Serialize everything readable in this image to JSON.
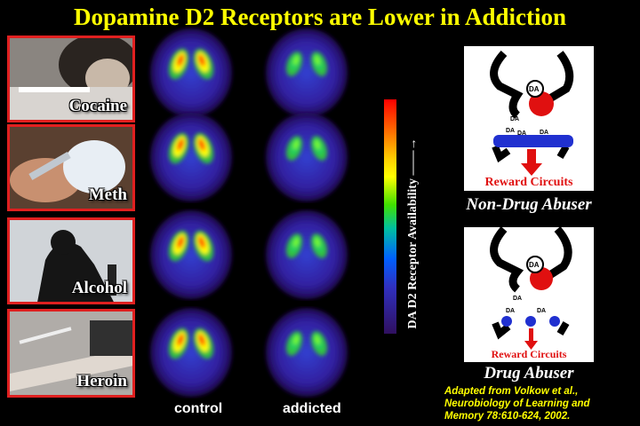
{
  "title": "Dopamine D2 Receptors are  Lower in Addiction",
  "drugs": [
    {
      "label": "Cocaine"
    },
    {
      "label": "Meth"
    },
    {
      "label": "Alcohol"
    },
    {
      "label": "Heroin"
    }
  ],
  "columns": {
    "control": "control",
    "addicted": "addicted"
  },
  "colorbar": {
    "label": "DA D2 Receptor Availability ——→",
    "colors": [
      "#ff0000",
      "#ffff00",
      "#40e000",
      "#0060ff",
      "#301060"
    ]
  },
  "diagrams": {
    "non_abuser": {
      "caption": "Non-Drug Abuser",
      "reward": "Reward Circuits",
      "da": "DA"
    },
    "abuser": {
      "caption": "Drug Abuser",
      "reward": "Reward Circuits",
      "da": "DA"
    }
  },
  "citation": [
    "Adapted from Volkow et al.,",
    "Neurobiology of Learning and",
    "Memory 78:610-624, 2002."
  ],
  "colors": {
    "title": "#ffff00",
    "border": "#e02020",
    "reward": "#e01010"
  }
}
